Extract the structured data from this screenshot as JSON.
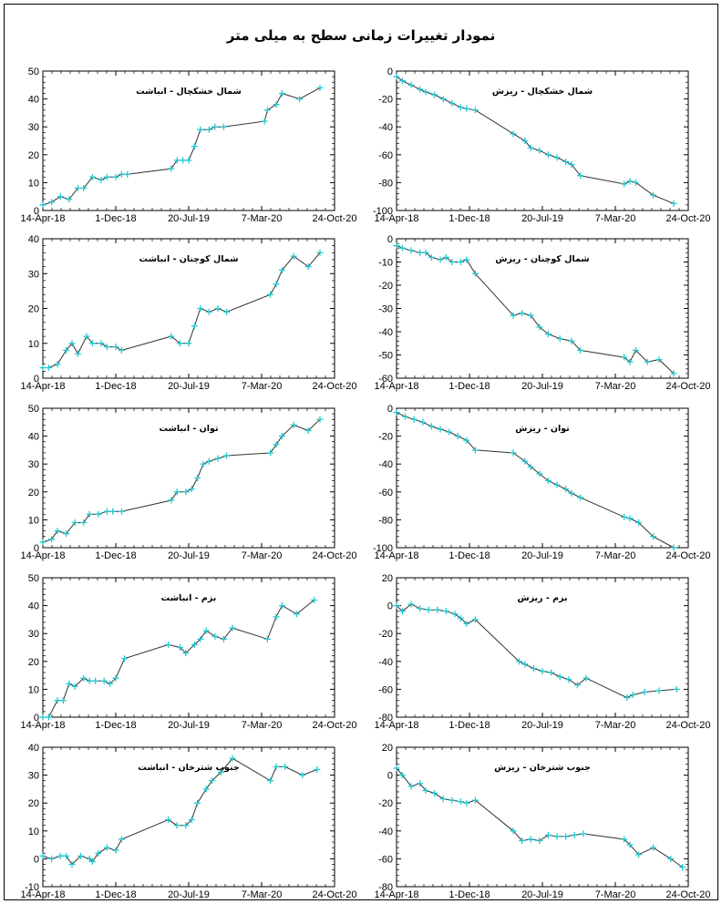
{
  "figure": {
    "title": "نمودار تغییرات زمانی سطح به میلی متر"
  },
  "chart_data": [
    {
      "type": "line",
      "title": "شمال خشکچال - انباشت",
      "xlabel": "",
      "ylabel": "",
      "x_ticks": [
        "14-Apr-18",
        "1-Dec-18",
        "20-Jul-19",
        "7-Mar-20",
        "24-Oct-20"
      ],
      "ylim": [
        0,
        50
      ],
      "y_ticks": [
        0,
        10,
        20,
        30,
        40,
        50
      ],
      "grid": false,
      "line_color": "#333333",
      "marker_color": "#22c8d0",
      "x": [
        0.0,
        0.03,
        0.06,
        0.09,
        0.12,
        0.14,
        0.17,
        0.2,
        0.22,
        0.25,
        0.27,
        0.29,
        0.44,
        0.46,
        0.48,
        0.5,
        0.52,
        0.54,
        0.57,
        0.59,
        0.62,
        0.76,
        0.77,
        0.8,
        0.82,
        0.88,
        0.95
      ],
      "values": [
        2,
        3,
        5,
        4,
        8,
        8,
        12,
        11,
        12,
        12,
        13,
        13,
        15,
        18,
        18,
        18,
        23,
        29,
        29,
        30,
        30,
        32,
        36,
        38,
        42,
        40,
        44
      ]
    },
    {
      "type": "line",
      "title": "شمال خشکچال - ریزش",
      "xlabel": "",
      "ylabel": "",
      "x_ticks": [
        "14-Apr-18",
        "1-Dec-18",
        "20-Jul-19",
        "7-Mar-20",
        "24-Oct-20"
      ],
      "ylim": [
        -100,
        0
      ],
      "y_ticks": [
        -100,
        -80,
        -60,
        -40,
        -20,
        0
      ],
      "grid": false,
      "line_color": "#333333",
      "marker_color": "#22c8d0",
      "x": [
        0.0,
        0.02,
        0.05,
        0.08,
        0.1,
        0.13,
        0.16,
        0.19,
        0.22,
        0.24,
        0.27,
        0.4,
        0.44,
        0.46,
        0.49,
        0.52,
        0.55,
        0.58,
        0.6,
        0.63,
        0.78,
        0.8,
        0.82,
        0.88,
        0.95
      ],
      "values": [
        -4,
        -7,
        -10,
        -13,
        -15,
        -17,
        -20,
        -23,
        -26,
        -27,
        -28,
        -45,
        -50,
        -55,
        -57,
        -60,
        -62,
        -65,
        -67,
        -75,
        -81,
        -79,
        -80,
        -89,
        -95
      ]
    },
    {
      "type": "line",
      "title": "شمال کوچنان - انباشت",
      "xlabel": "",
      "ylabel": "",
      "x_ticks": [
        "14-Apr-18",
        "1-Dec-18",
        "20-Jul-19",
        "7-Mar-20",
        "24-Oct-20"
      ],
      "ylim": [
        0,
        40
      ],
      "y_ticks": [
        0,
        10,
        20,
        30,
        40
      ],
      "grid": false,
      "line_color": "#333333",
      "marker_color": "#22c8d0",
      "x": [
        0.0,
        0.02,
        0.05,
        0.08,
        0.1,
        0.12,
        0.15,
        0.17,
        0.2,
        0.22,
        0.25,
        0.27,
        0.44,
        0.47,
        0.5,
        0.52,
        0.54,
        0.57,
        0.6,
        0.63,
        0.78,
        0.8,
        0.82,
        0.86,
        0.91,
        0.95
      ],
      "values": [
        3,
        3,
        4,
        8,
        10,
        7,
        12,
        10,
        10,
        9,
        9,
        8,
        12,
        10,
        10,
        15,
        20,
        19,
        20,
        19,
        24,
        27,
        31,
        35,
        32,
        36
      ]
    },
    {
      "type": "line",
      "title": "شمال کوچنان - ریزش",
      "xlabel": "",
      "ylabel": "",
      "x_ticks": [
        "14-Apr-18",
        "1-Dec-18",
        "20-Jul-19",
        "7-Mar-20",
        "24-Oct-20"
      ],
      "ylim": [
        -60,
        0
      ],
      "y_ticks": [
        -60,
        -50,
        -40,
        -30,
        -20,
        -10,
        0
      ],
      "grid": false,
      "line_color": "#333333",
      "marker_color": "#22c8d0",
      "x": [
        0.0,
        0.02,
        0.05,
        0.08,
        0.1,
        0.12,
        0.15,
        0.17,
        0.19,
        0.22,
        0.24,
        0.27,
        0.4,
        0.43,
        0.46,
        0.49,
        0.52,
        0.56,
        0.6,
        0.63,
        0.78,
        0.8,
        0.82,
        0.86,
        0.9,
        0.95
      ],
      "values": [
        -3,
        -4,
        -5,
        -6,
        -6,
        -8,
        -9,
        -8,
        -10,
        -10,
        -9,
        -15,
        -33,
        -32,
        -33,
        -38,
        -41,
        -43,
        -44,
        -48,
        -51,
        -53,
        -48,
        -53,
        -52,
        -58
      ]
    },
    {
      "type": "line",
      "title": "توان - انباشت",
      "xlabel": "",
      "ylabel": "",
      "x_ticks": [
        "14-Apr-18",
        "1-Dec-18",
        "20-Jul-19",
        "7-Mar-20",
        "24-Oct-20"
      ],
      "ylim": [
        0,
        50
      ],
      "y_ticks": [
        0,
        10,
        20,
        30,
        40,
        50
      ],
      "grid": false,
      "line_color": "#333333",
      "marker_color": "#22c8d0",
      "x": [
        0.0,
        0.03,
        0.05,
        0.08,
        0.11,
        0.14,
        0.16,
        0.19,
        0.22,
        0.24,
        0.27,
        0.44,
        0.46,
        0.49,
        0.51,
        0.53,
        0.55,
        0.57,
        0.6,
        0.63,
        0.78,
        0.8,
        0.82,
        0.86,
        0.91,
        0.95
      ],
      "values": [
        2,
        3,
        6,
        5,
        9,
        9,
        12,
        12,
        13,
        13,
        13,
        17,
        20,
        20,
        21,
        25,
        30,
        31,
        32,
        33,
        34,
        37,
        40,
        44,
        42,
        46
      ]
    },
    {
      "type": "line",
      "title": "توان - ریزش",
      "xlabel": "",
      "ylabel": "",
      "x_ticks": [
        "14-Apr-18",
        "1-Dec-18",
        "20-Jul-19",
        "7-Mar-20",
        "24-Oct-20"
      ],
      "ylim": [
        -100,
        0
      ],
      "y_ticks": [
        -100,
        -80,
        -60,
        -40,
        -20,
        0
      ],
      "grid": false,
      "line_color": "#333333",
      "marker_color": "#22c8d0",
      "x": [
        0.0,
        0.03,
        0.06,
        0.09,
        0.12,
        0.15,
        0.18,
        0.21,
        0.24,
        0.27,
        0.4,
        0.44,
        0.46,
        0.49,
        0.52,
        0.55,
        0.58,
        0.6,
        0.63,
        0.78,
        0.8,
        0.83,
        0.88,
        0.95
      ],
      "values": [
        -3,
        -6,
        -8,
        -10,
        -13,
        -15,
        -17,
        -20,
        -23,
        -30,
        -32,
        -38,
        -42,
        -47,
        -52,
        -55,
        -58,
        -61,
        -64,
        -78,
        -79,
        -82,
        -92,
        -100
      ]
    },
    {
      "type": "line",
      "title": "بزم - انباشت",
      "xlabel": "",
      "ylabel": "",
      "x_ticks": [
        "14-Apr-18",
        "1-Dec-18",
        "20-Jul-19",
        "7-Mar-20",
        "24-Oct-20"
      ],
      "ylim": [
        0,
        50
      ],
      "y_ticks": [
        0,
        10,
        20,
        30,
        40,
        50
      ],
      "grid": false,
      "line_color": "#333333",
      "marker_color": "#22c8d0",
      "x": [
        0.0,
        0.02,
        0.05,
        0.07,
        0.09,
        0.11,
        0.14,
        0.16,
        0.18,
        0.21,
        0.23,
        0.25,
        0.28,
        0.43,
        0.47,
        0.49,
        0.52,
        0.54,
        0.56,
        0.59,
        0.62,
        0.65,
        0.77,
        0.8,
        0.82,
        0.87,
        0.93
      ],
      "values": [
        0,
        0,
        6,
        6,
        12,
        11,
        14,
        13,
        13,
        13,
        12,
        14,
        21,
        26,
        25,
        23,
        26,
        28,
        31,
        29,
        28,
        32,
        28,
        36,
        40,
        37,
        42
      ]
    },
    {
      "type": "line",
      "title": "بزم - ریزش",
      "xlabel": "",
      "ylabel": "",
      "x_ticks": [
        "14-Apr-18",
        "1-Dec-18",
        "20-Jul-19",
        "7-Mar-20",
        "24-Oct-20"
      ],
      "ylim": [
        -80,
        20
      ],
      "y_ticks": [
        -80,
        -60,
        -40,
        -20,
        0,
        20
      ],
      "grid": false,
      "line_color": "#333333",
      "marker_color": "#22c8d0",
      "x": [
        0.0,
        0.02,
        0.05,
        0.08,
        0.11,
        0.14,
        0.17,
        0.2,
        0.22,
        0.24,
        0.27,
        0.42,
        0.44,
        0.47,
        0.5,
        0.53,
        0.56,
        0.59,
        0.62,
        0.65,
        0.79,
        0.81,
        0.85,
        0.9,
        0.96
      ],
      "values": [
        0,
        -4,
        1,
        -2,
        -3,
        -3,
        -4,
        -6,
        -9,
        -13,
        -10,
        -40,
        -42,
        -45,
        -47,
        -48,
        -51,
        -53,
        -57,
        -52,
        -66,
        -64,
        -62,
        -61,
        -60
      ]
    },
    {
      "type": "line",
      "title": "جنوب شترخان - انباشت",
      "xlabel": "",
      "ylabel": "",
      "x_ticks": [
        "14-Apr-18",
        "1-Dec-18",
        "20-Jul-19",
        "7-Mar-20",
        "24-Oct-20"
      ],
      "ylim": [
        -10,
        40
      ],
      "y_ticks": [
        -10,
        0,
        10,
        20,
        30,
        40
      ],
      "grid": false,
      "line_color": "#333333",
      "marker_color": "#22c8d0",
      "x": [
        0.0,
        0.03,
        0.06,
        0.08,
        0.1,
        0.13,
        0.16,
        0.17,
        0.19,
        0.22,
        0.25,
        0.27,
        0.43,
        0.46,
        0.49,
        0.51,
        0.53,
        0.56,
        0.58,
        0.61,
        0.65,
        0.78,
        0.8,
        0.83,
        0.89,
        0.94
      ],
      "values": [
        1,
        0,
        1,
        1,
        -2,
        1,
        0,
        -1,
        2,
        4,
        3,
        7,
        14,
        12,
        12,
        14,
        20,
        25,
        28,
        31,
        36,
        28,
        33,
        33,
        30,
        32
      ]
    },
    {
      "type": "line",
      "title": "جنوب شترخان - ریزش",
      "xlabel": "",
      "ylabel": "",
      "x_ticks": [
        "14-Apr-18",
        "1-Dec-18",
        "20-Jul-19",
        "7-Mar-20",
        "24-Oct-20"
      ],
      "ylim": [
        -80,
        20
      ],
      "y_ticks": [
        -80,
        -60,
        -40,
        -20,
        0,
        20
      ],
      "grid": false,
      "line_color": "#333333",
      "marker_color": "#22c8d0",
      "x": [
        0.0,
        0.02,
        0.05,
        0.08,
        0.1,
        0.13,
        0.16,
        0.19,
        0.22,
        0.24,
        0.27,
        0.4,
        0.43,
        0.46,
        0.49,
        0.52,
        0.55,
        0.58,
        0.61,
        0.64,
        0.78,
        0.8,
        0.83,
        0.88,
        0.94,
        0.98
      ],
      "values": [
        5,
        0,
        -8,
        -6,
        -11,
        -13,
        -17,
        -18,
        -19,
        -20,
        -18,
        -40,
        -47,
        -46,
        -47,
        -43,
        -44,
        -44,
        -43,
        -42,
        -46,
        -50,
        -57,
        -52,
        -60,
        -66
      ]
    }
  ]
}
